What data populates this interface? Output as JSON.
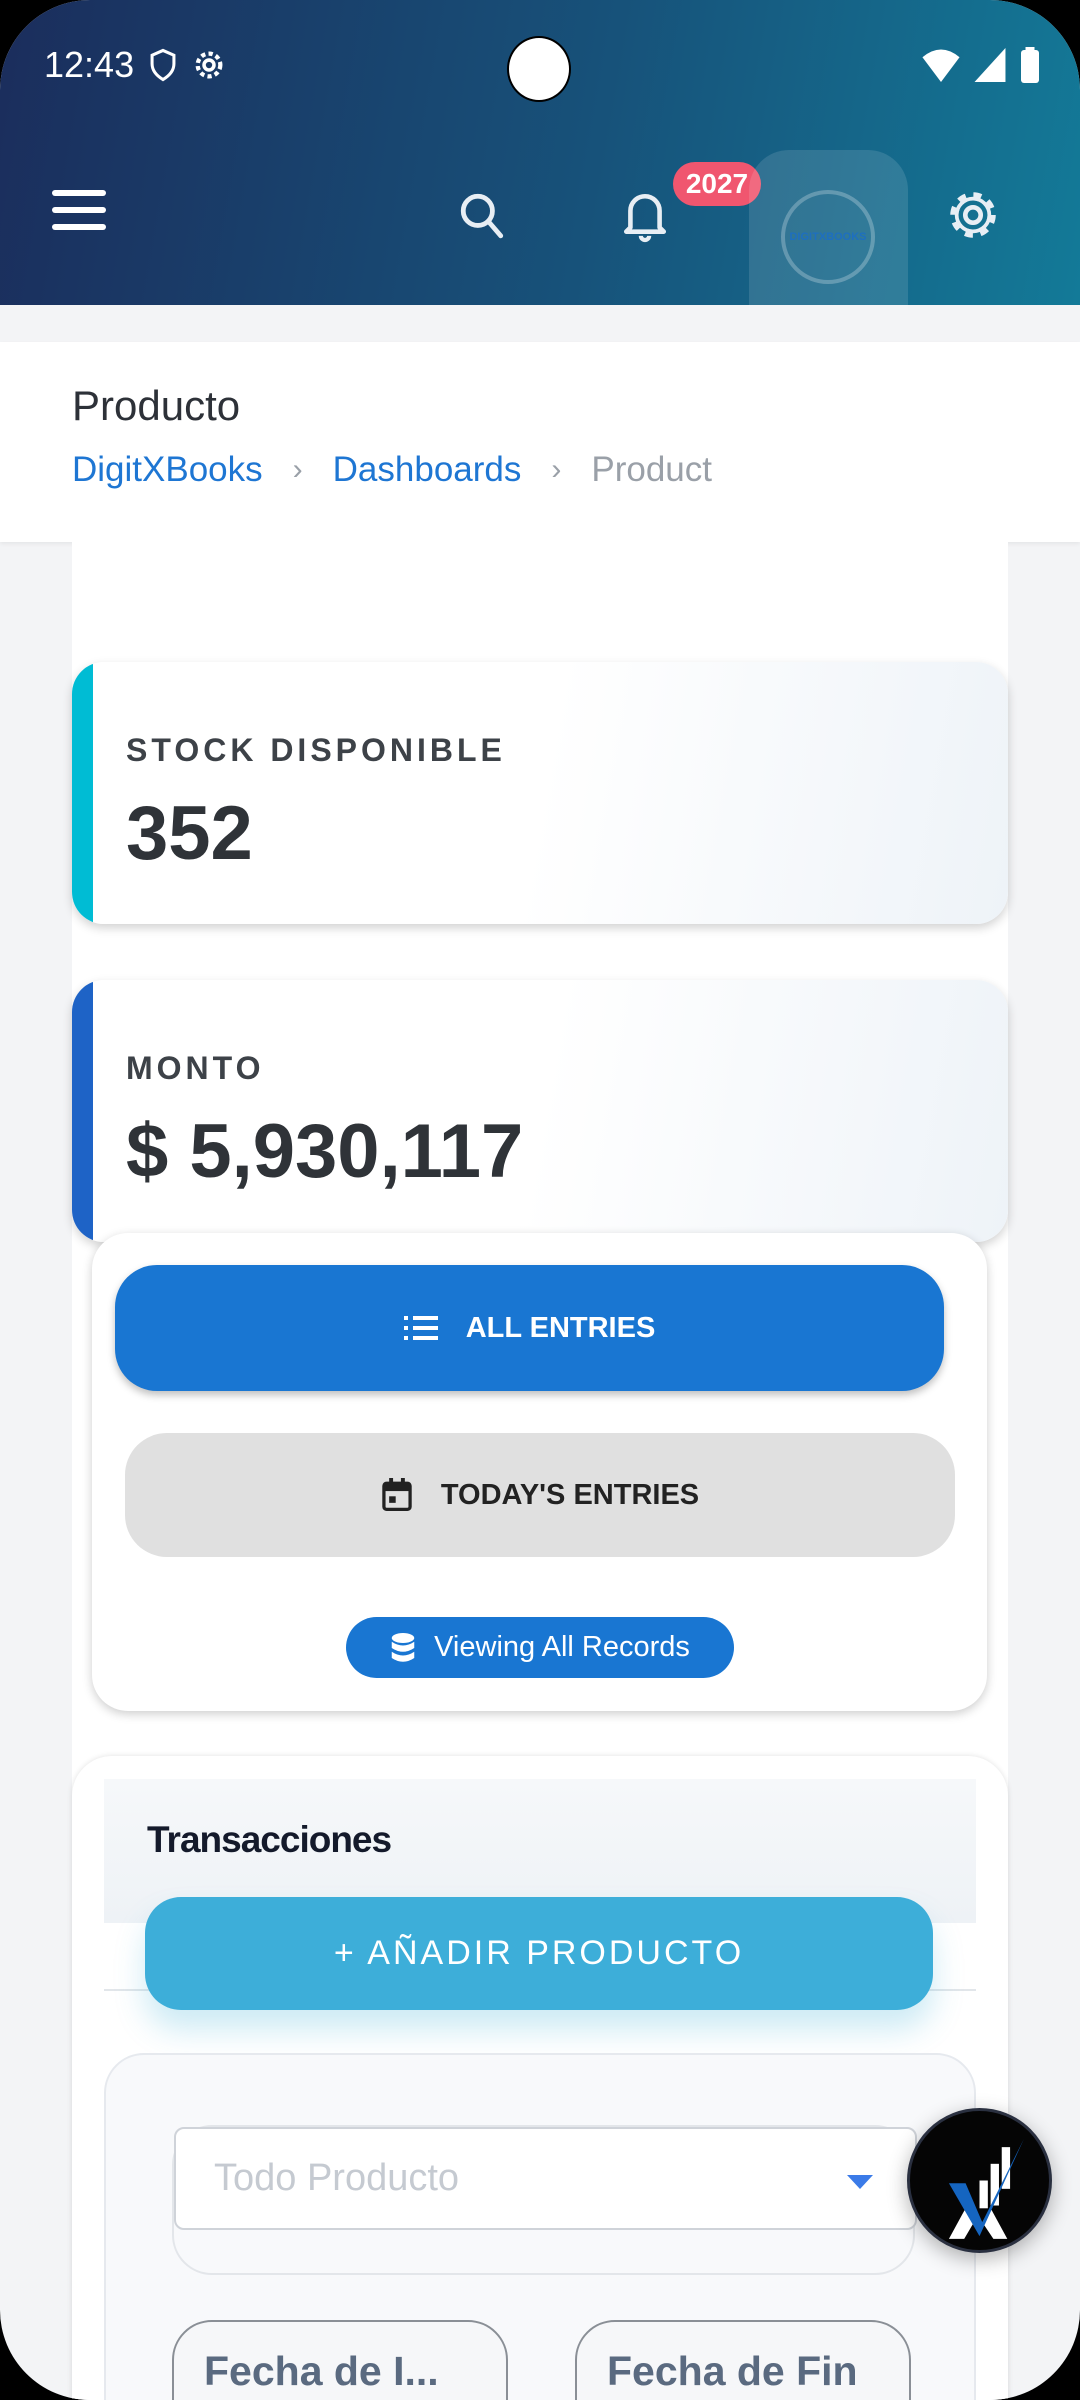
{
  "status_bar": {
    "time": "12:43"
  },
  "header": {
    "notification_count": "2027",
    "logo_text": "DIGITXBOOKS"
  },
  "page": {
    "title": "Producto",
    "breadcrumbs": [
      "DigitXBooks",
      "Dashboards",
      "Product"
    ]
  },
  "stats": [
    {
      "label": "STOCK DISPONIBLE",
      "value": "352",
      "accent": "#00bcd4"
    },
    {
      "label": "MONTO",
      "value": "$ 5,930,117",
      "accent": "#1e63c6"
    }
  ],
  "filters": {
    "all_entries": "ALL ENTRIES",
    "todays_entries": "TODAY'S ENTRIES",
    "viewing": "Viewing All Records"
  },
  "transactions": {
    "title": "Transacciones",
    "add_button": "+ AÑADIR PRODUCTO",
    "product_placeholder": "Todo Producto",
    "start_date": "Fecha de I...",
    "end_date": "Fecha de Fin"
  },
  "colors": {
    "primary": "#1976d2",
    "add": "#3daed9",
    "badge": "#f0566f"
  }
}
